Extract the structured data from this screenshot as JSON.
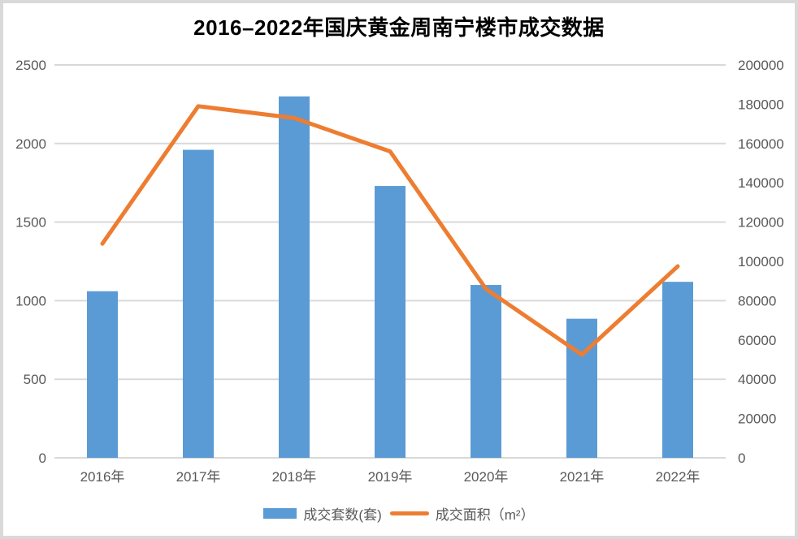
{
  "title": "2016–2022年国庆黄金周南宁楼市成交数据",
  "chart_data": {
    "type": "bar",
    "subtype": "combo-bar-line-dual-axis",
    "categories": [
      "2016年",
      "2017年",
      "2018年",
      "2019年",
      "2020年",
      "2021年",
      "2022年"
    ],
    "series": [
      {
        "name": "成交套数(套)",
        "type": "bar",
        "axis": "left",
        "values": [
          1060,
          1960,
          2300,
          1730,
          1100,
          885,
          1120
        ]
      },
      {
        "name": "成交面积（m²）",
        "type": "line",
        "axis": "right",
        "values": [
          109000,
          179000,
          173000,
          156000,
          86000,
          52500,
          97500
        ]
      }
    ],
    "left_axis": {
      "min": 0,
      "max": 2500,
      "step": 500,
      "tick_labels": [
        "0",
        "500",
        "1000",
        "1500",
        "2000",
        "2500"
      ]
    },
    "right_axis": {
      "min": 0,
      "max": 200000,
      "step": 20000,
      "tick_labels": [
        "0",
        "20000",
        "40000",
        "60000",
        "80000",
        "100000",
        "120000",
        "140000",
        "160000",
        "180000",
        "200000"
      ]
    },
    "grid": true,
    "legend_position": "bottom"
  },
  "colors": {
    "bar": "#5B9BD5",
    "line": "#ED7D31",
    "grid": "#D9D9D9",
    "axis_text": "#595959",
    "title_text": "#000000",
    "frame": "#D9D9D9",
    "background": "#FFFFFF"
  }
}
